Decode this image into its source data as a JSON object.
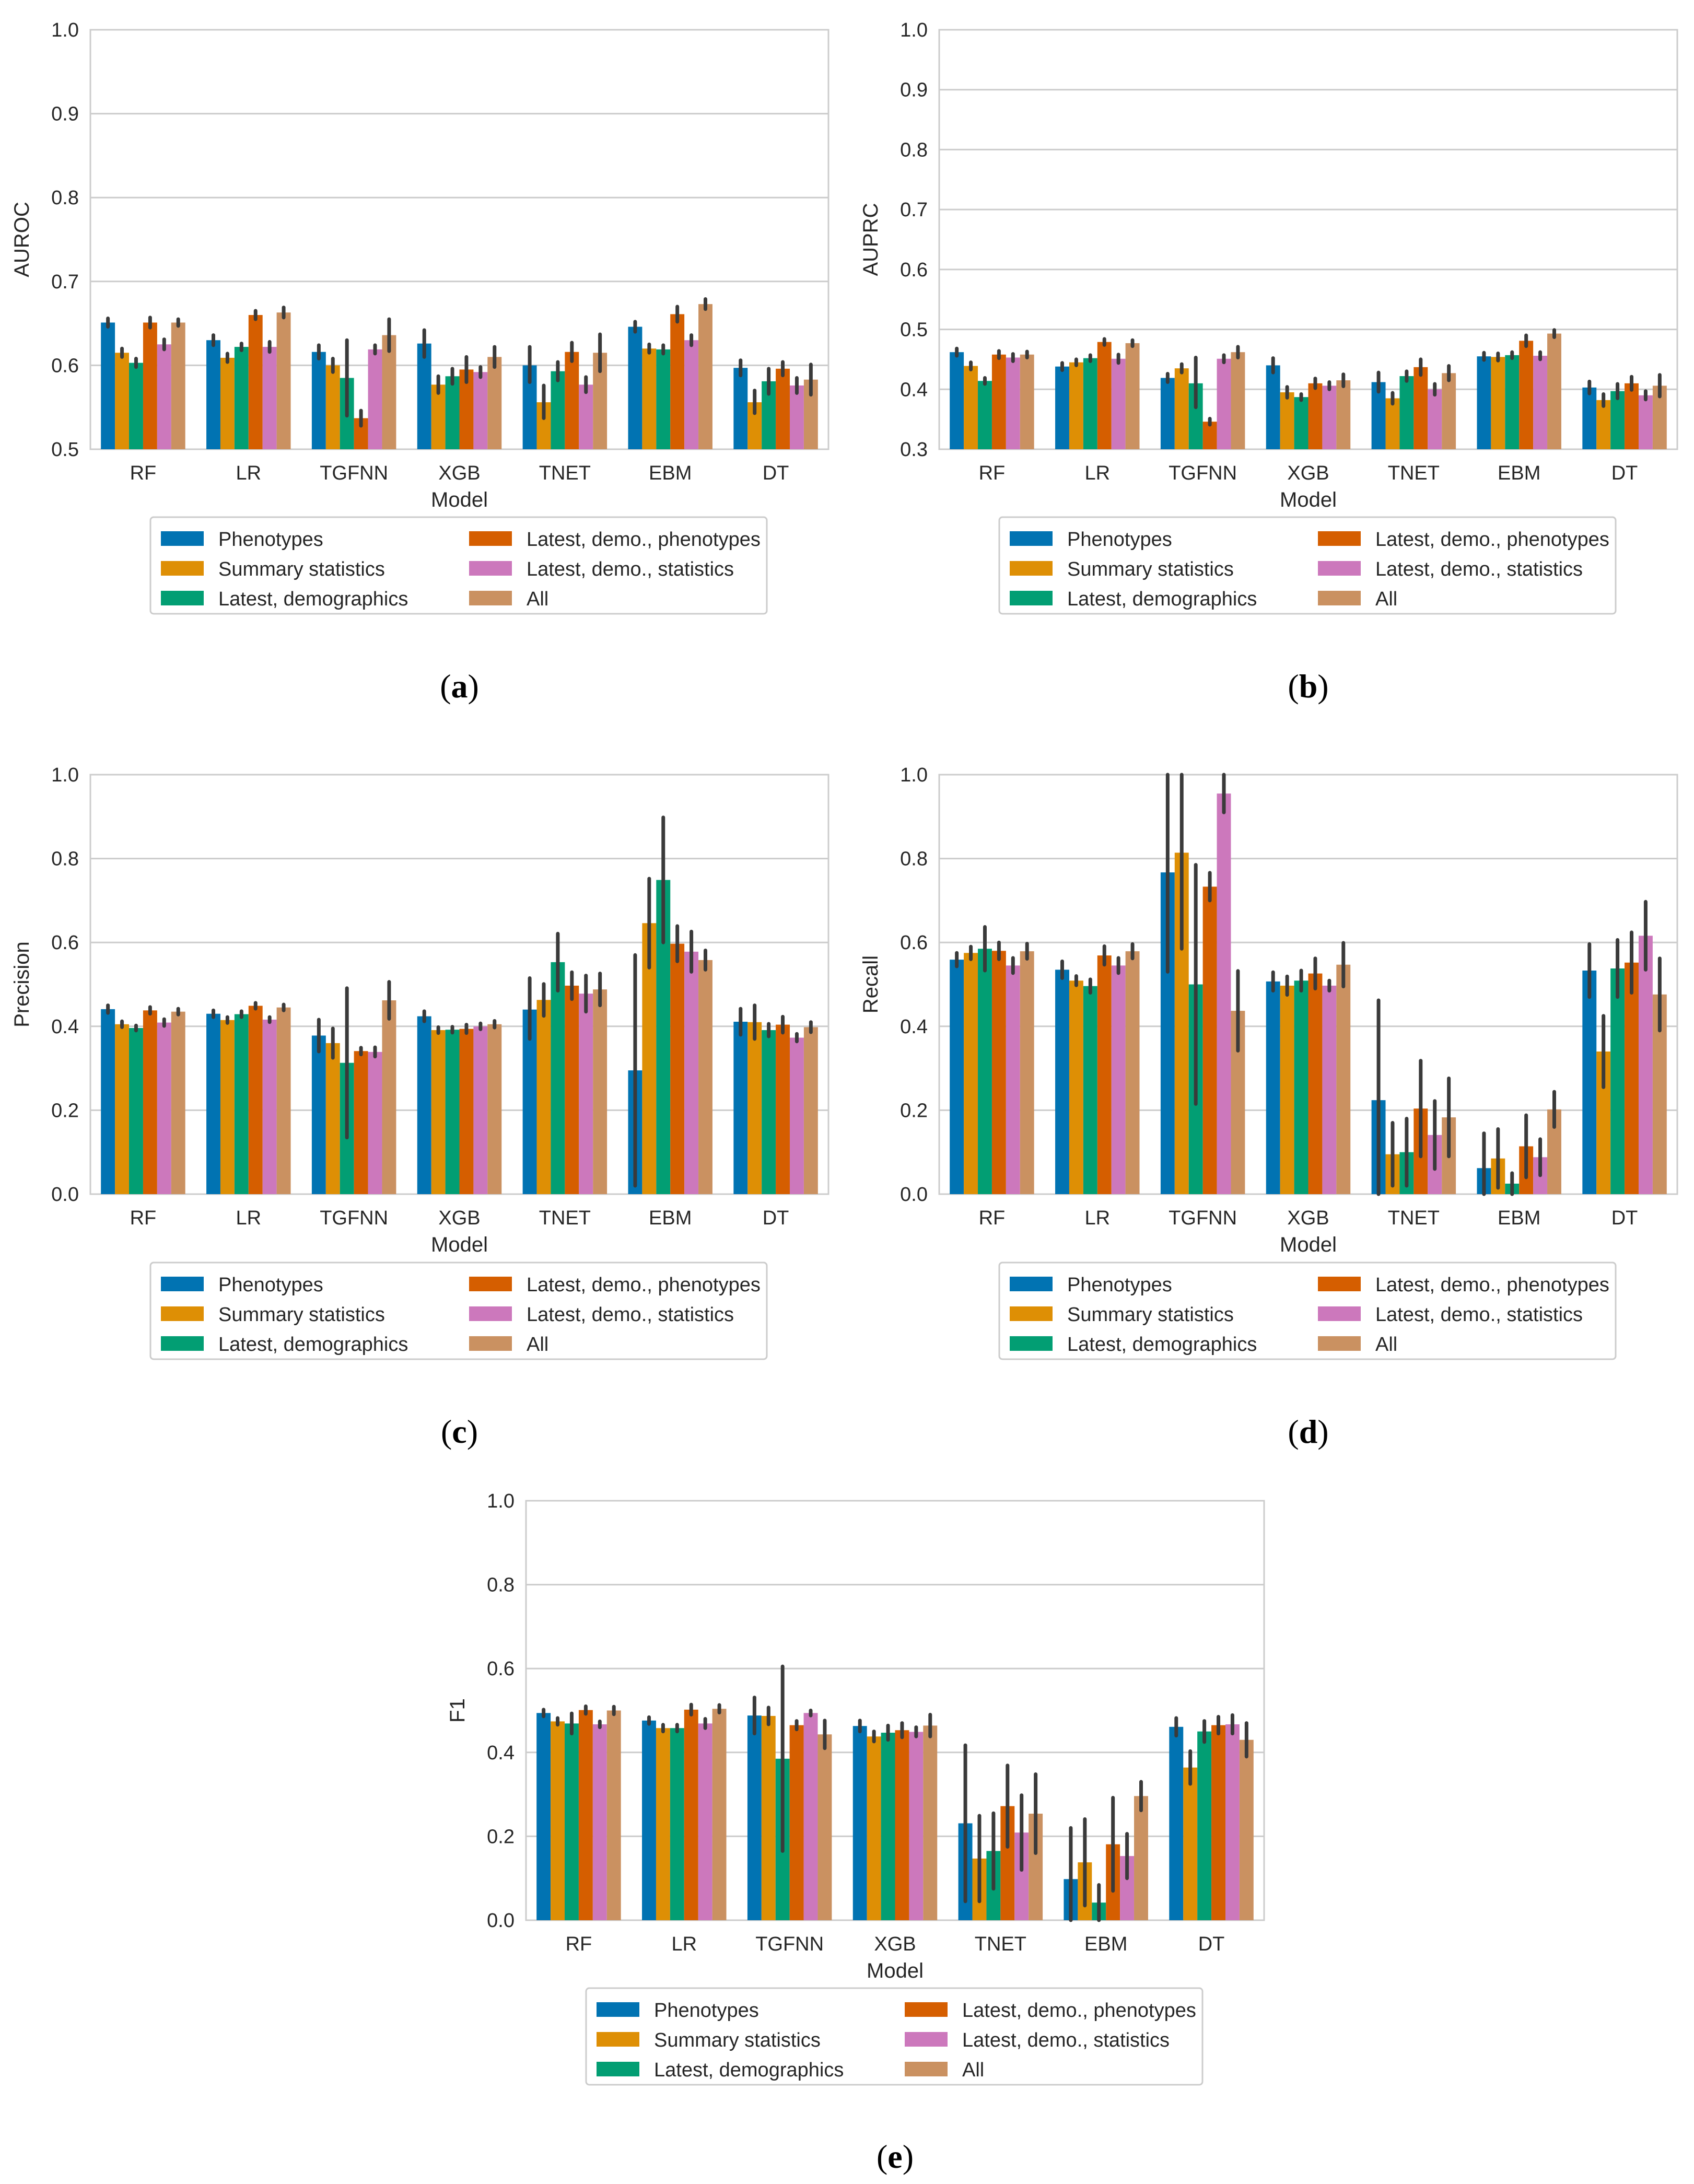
{
  "legend_labels": [
    "Phenotypes",
    "Summary statistics",
    "Latest, demographics",
    "Latest, demo., phenotypes",
    "Latest, demo., statistics",
    "All"
  ],
  "series_colors": [
    "#0173b2",
    "#de8f05",
    "#029e73",
    "#d55e00",
    "#cc78bc",
    "#ca9161"
  ],
  "error_bar_color": "#3a3a3a",
  "gridline_color": "#cccccc",
  "chart_data": [
    {
      "type": "bar",
      "caption": {
        "open": "(",
        "letter": "a",
        "close": ")"
      },
      "xlabel": "Model",
      "ylabel": "AUROC",
      "ylim": [
        0.5,
        1.0
      ],
      "yticks": [
        "0.5",
        "0.6",
        "0.7",
        "0.8",
        "0.9",
        "1.0"
      ],
      "categories": [
        "RF",
        "LR",
        "TGFNN",
        "XGB",
        "TNET",
        "EBM",
        "DT"
      ],
      "series": [
        {
          "name": "Phenotypes",
          "values": [
            0.651,
            0.63,
            0.616,
            0.626,
            0.6,
            0.646,
            0.597
          ],
          "err_low": [
            0.646,
            0.624,
            0.608,
            0.61,
            0.58,
            0.64,
            0.588
          ],
          "err_high": [
            0.656,
            0.636,
            0.624,
            0.642,
            0.622,
            0.652,
            0.606
          ]
        },
        {
          "name": "Summary statistics",
          "values": [
            0.615,
            0.609,
            0.6,
            0.577,
            0.556,
            0.62,
            0.556
          ],
          "err_low": [
            0.61,
            0.604,
            0.592,
            0.567,
            0.537,
            0.615,
            0.543
          ],
          "err_high": [
            0.62,
            0.614,
            0.608,
            0.587,
            0.576,
            0.625,
            0.57
          ]
        },
        {
          "name": "Latest, demographics",
          "values": [
            0.603,
            0.622,
            0.585,
            0.587,
            0.593,
            0.619,
            0.581
          ],
          "err_low": [
            0.598,
            0.618,
            0.54,
            0.578,
            0.582,
            0.614,
            0.566
          ],
          "err_high": [
            0.608,
            0.626,
            0.63,
            0.596,
            0.604,
            0.624,
            0.596
          ]
        },
        {
          "name": "Latest, demo., phenotypes",
          "values": [
            0.651,
            0.66,
            0.537,
            0.595,
            0.616,
            0.661,
            0.596
          ],
          "err_low": [
            0.645,
            0.655,
            0.528,
            0.58,
            0.605,
            0.652,
            0.588
          ],
          "err_high": [
            0.657,
            0.665,
            0.546,
            0.61,
            0.627,
            0.67,
            0.604
          ]
        },
        {
          "name": "Latest, demo., statistics",
          "values": [
            0.625,
            0.622,
            0.619,
            0.592,
            0.577,
            0.63,
            0.576
          ],
          "err_low": [
            0.619,
            0.616,
            0.614,
            0.586,
            0.568,
            0.624,
            0.567
          ],
          "err_high": [
            0.631,
            0.628,
            0.624,
            0.598,
            0.586,
            0.636,
            0.585
          ]
        },
        {
          "name": "All",
          "values": [
            0.651,
            0.663,
            0.636,
            0.61,
            0.615,
            0.673,
            0.583
          ],
          "err_low": [
            0.647,
            0.657,
            0.617,
            0.598,
            0.593,
            0.667,
            0.565
          ],
          "err_high": [
            0.655,
            0.669,
            0.655,
            0.622,
            0.637,
            0.679,
            0.601
          ]
        }
      ]
    },
    {
      "type": "bar",
      "caption": {
        "open": "(",
        "letter": "b",
        "close": ")"
      },
      "xlabel": "Model",
      "ylabel": "AUPRC",
      "ylim": [
        0.3,
        1.0
      ],
      "yticks": [
        "0.3",
        "0.4",
        "0.5",
        "0.6",
        "0.7",
        "0.8",
        "0.9",
        "1.0"
      ],
      "categories": [
        "RF",
        "LR",
        "TGFNN",
        "XGB",
        "TNET",
        "EBM",
        "DT"
      ],
      "series": [
        {
          "name": "Phenotypes",
          "values": [
            0.462,
            0.438,
            0.419,
            0.44,
            0.412,
            0.455,
            0.403
          ],
          "err_low": [
            0.456,
            0.432,
            0.412,
            0.428,
            0.396,
            0.449,
            0.393
          ],
          "err_high": [
            0.468,
            0.444,
            0.426,
            0.452,
            0.428,
            0.461,
            0.413
          ]
        },
        {
          "name": "Summary statistics",
          "values": [
            0.439,
            0.445,
            0.435,
            0.395,
            0.385,
            0.454,
            0.382
          ],
          "err_low": [
            0.433,
            0.44,
            0.428,
            0.386,
            0.376,
            0.448,
            0.372
          ],
          "err_high": [
            0.445,
            0.45,
            0.442,
            0.404,
            0.394,
            0.46,
            0.392
          ]
        },
        {
          "name": "Latest, demographics",
          "values": [
            0.414,
            0.452,
            0.41,
            0.387,
            0.422,
            0.457,
            0.397
          ],
          "err_low": [
            0.409,
            0.447,
            0.37,
            0.382,
            0.414,
            0.452,
            0.385
          ],
          "err_high": [
            0.419,
            0.457,
            0.453,
            0.392,
            0.43,
            0.462,
            0.409
          ]
        },
        {
          "name": "Latest, demo., phenotypes",
          "values": [
            0.458,
            0.479,
            0.346,
            0.41,
            0.437,
            0.481,
            0.41
          ],
          "err_low": [
            0.452,
            0.474,
            0.341,
            0.402,
            0.424,
            0.472,
            0.399
          ],
          "err_high": [
            0.464,
            0.484,
            0.351,
            0.418,
            0.45,
            0.49,
            0.421
          ]
        },
        {
          "name": "Latest, demo., statistics",
          "values": [
            0.453,
            0.451,
            0.451,
            0.406,
            0.4,
            0.456,
            0.39
          ],
          "err_low": [
            0.447,
            0.444,
            0.445,
            0.4,
            0.391,
            0.45,
            0.383
          ],
          "err_high": [
            0.459,
            0.458,
            0.457,
            0.412,
            0.409,
            0.462,
            0.397
          ]
        },
        {
          "name": "All",
          "values": [
            0.458,
            0.477,
            0.462,
            0.415,
            0.427,
            0.493,
            0.406
          ],
          "err_low": [
            0.453,
            0.472,
            0.453,
            0.405,
            0.415,
            0.487,
            0.388
          ],
          "err_high": [
            0.463,
            0.482,
            0.471,
            0.425,
            0.439,
            0.499,
            0.424
          ]
        }
      ]
    },
    {
      "type": "bar",
      "caption": {
        "open": "(",
        "letter": "c",
        "close": ")"
      },
      "xlabel": "Model",
      "ylabel": "Precision",
      "ylim": [
        0.0,
        1.0
      ],
      "yticks": [
        "0.0",
        "0.2",
        "0.4",
        "0.6",
        "0.8",
        "1.0"
      ],
      "categories": [
        "RF",
        "LR",
        "TGFNN",
        "XGB",
        "TNET",
        "EBM",
        "DT"
      ],
      "series": [
        {
          "name": "Phenotypes",
          "values": [
            0.441,
            0.43,
            0.378,
            0.424,
            0.44,
            0.295,
            0.411
          ],
          "err_low": [
            0.432,
            0.422,
            0.34,
            0.412,
            0.37,
            0.02,
            0.38
          ],
          "err_high": [
            0.45,
            0.438,
            0.416,
            0.436,
            0.515,
            0.57,
            0.442
          ]
        },
        {
          "name": "Summary statistics",
          "values": [
            0.405,
            0.415,
            0.36,
            0.391,
            0.463,
            0.646,
            0.41
          ],
          "err_low": [
            0.398,
            0.408,
            0.325,
            0.384,
            0.425,
            0.54,
            0.37
          ],
          "err_high": [
            0.412,
            0.422,
            0.395,
            0.398,
            0.501,
            0.752,
            0.45
          ]
        },
        {
          "name": "Latest, demographics",
          "values": [
            0.396,
            0.429,
            0.313,
            0.392,
            0.553,
            0.749,
            0.391
          ],
          "err_low": [
            0.39,
            0.422,
            0.135,
            0.385,
            0.485,
            0.6,
            0.376
          ],
          "err_high": [
            0.402,
            0.436,
            0.491,
            0.399,
            0.621,
            0.898,
            0.406
          ]
        },
        {
          "name": "Latest, demo., phenotypes",
          "values": [
            0.438,
            0.449,
            0.341,
            0.394,
            0.497,
            0.597,
            0.404
          ],
          "err_low": [
            0.43,
            0.442,
            0.333,
            0.384,
            0.465,
            0.555,
            0.385
          ],
          "err_high": [
            0.446,
            0.456,
            0.349,
            0.404,
            0.529,
            0.639,
            0.423
          ]
        },
        {
          "name": "Latest, demo., statistics",
          "values": [
            0.409,
            0.416,
            0.339,
            0.4,
            0.478,
            0.578,
            0.373
          ],
          "err_low": [
            0.401,
            0.41,
            0.328,
            0.393,
            0.435,
            0.53,
            0.364
          ],
          "err_high": [
            0.417,
            0.422,
            0.35,
            0.407,
            0.521,
            0.626,
            0.382
          ]
        },
        {
          "name": "All",
          "values": [
            0.435,
            0.445,
            0.462,
            0.405,
            0.488,
            0.558,
            0.398
          ],
          "err_low": [
            0.428,
            0.438,
            0.418,
            0.397,
            0.45,
            0.535,
            0.386
          ],
          "err_high": [
            0.442,
            0.452,
            0.506,
            0.413,
            0.526,
            0.581,
            0.41
          ]
        }
      ]
    },
    {
      "type": "bar",
      "caption": {
        "open": "(",
        "letter": "d",
        "close": ")"
      },
      "xlabel": "Model",
      "ylabel": "Recall",
      "ylim": [
        0.0,
        1.0
      ],
      "yticks": [
        "0.0",
        "0.2",
        "0.4",
        "0.6",
        "0.8",
        "1.0"
      ],
      "categories": [
        "RF",
        "LR",
        "TGFNN",
        "XGB",
        "TNET",
        "EBM",
        "DT"
      ],
      "series": [
        {
          "name": "Phenotypes",
          "values": [
            0.559,
            0.535,
            0.767,
            0.507,
            0.224,
            0.062,
            0.533
          ],
          "err_low": [
            0.543,
            0.515,
            0.53,
            0.485,
            0.0,
            0.0,
            0.47
          ],
          "err_high": [
            0.575,
            0.555,
            1.0,
            0.529,
            0.462,
            0.145,
            0.596
          ]
        },
        {
          "name": "Summary statistics",
          "values": [
            0.575,
            0.509,
            0.814,
            0.497,
            0.095,
            0.085,
            0.34
          ],
          "err_low": [
            0.56,
            0.498,
            0.585,
            0.475,
            0.02,
            0.015,
            0.255
          ],
          "err_high": [
            0.59,
            0.52,
            1.0,
            0.519,
            0.17,
            0.155,
            0.425
          ]
        },
        {
          "name": "Latest, demographics",
          "values": [
            0.585,
            0.496,
            0.5,
            0.509,
            0.1,
            0.025,
            0.538
          ],
          "err_low": [
            0.533,
            0.48,
            0.215,
            0.485,
            0.02,
            0.0,
            0.47
          ],
          "err_high": [
            0.637,
            0.512,
            0.785,
            0.533,
            0.18,
            0.05,
            0.606
          ]
        },
        {
          "name": "Latest, demo., phenotypes",
          "values": [
            0.58,
            0.569,
            0.733,
            0.526,
            0.204,
            0.114,
            0.552
          ],
          "err_low": [
            0.56,
            0.547,
            0.7,
            0.49,
            0.09,
            0.04,
            0.48
          ],
          "err_high": [
            0.6,
            0.591,
            0.766,
            0.562,
            0.318,
            0.188,
            0.624
          ]
        },
        {
          "name": "Latest, demo., statistics",
          "values": [
            0.545,
            0.545,
            0.955,
            0.497,
            0.141,
            0.088,
            0.616
          ],
          "err_low": [
            0.527,
            0.527,
            0.91,
            0.485,
            0.06,
            0.045,
            0.535
          ],
          "err_high": [
            0.563,
            0.563,
            1.0,
            0.509,
            0.222,
            0.131,
            0.697
          ]
        },
        {
          "name": "All",
          "values": [
            0.579,
            0.579,
            0.437,
            0.547,
            0.183,
            0.202,
            0.476
          ],
          "err_low": [
            0.561,
            0.562,
            0.342,
            0.495,
            0.09,
            0.16,
            0.39
          ],
          "err_high": [
            0.597,
            0.596,
            0.532,
            0.599,
            0.276,
            0.244,
            0.562
          ]
        }
      ]
    },
    {
      "type": "bar",
      "caption": {
        "open": "(",
        "letter": "e",
        "close": ")"
      },
      "xlabel": "Model",
      "ylabel": "F1",
      "ylim": [
        0.0,
        1.0
      ],
      "yticks": [
        "0.0",
        "0.2",
        "0.4",
        "0.6",
        "0.8",
        "1.0"
      ],
      "categories": [
        "RF",
        "LR",
        "TGFNN",
        "XGB",
        "TNET",
        "EBM",
        "DT"
      ],
      "series": [
        {
          "name": "Phenotypes",
          "values": [
            0.494,
            0.476,
            0.488,
            0.463,
            0.231,
            0.098,
            0.461
          ],
          "err_low": [
            0.486,
            0.468,
            0.445,
            0.45,
            0.045,
            0.0,
            0.44
          ],
          "err_high": [
            0.502,
            0.484,
            0.531,
            0.476,
            0.417,
            0.22,
            0.482
          ]
        },
        {
          "name": "Summary statistics",
          "values": [
            0.474,
            0.458,
            0.487,
            0.438,
            0.147,
            0.138,
            0.364
          ],
          "err_low": [
            0.466,
            0.45,
            0.467,
            0.426,
            0.045,
            0.035,
            0.325
          ],
          "err_high": [
            0.482,
            0.466,
            0.507,
            0.45,
            0.249,
            0.241,
            0.403
          ]
        },
        {
          "name": "Latest, demographics",
          "values": [
            0.469,
            0.458,
            0.385,
            0.447,
            0.165,
            0.042,
            0.45
          ],
          "err_low": [
            0.445,
            0.45,
            0.165,
            0.43,
            0.075,
            0.0,
            0.425
          ],
          "err_high": [
            0.493,
            0.466,
            0.605,
            0.464,
            0.255,
            0.084,
            0.475
          ]
        },
        {
          "name": "Latest, demo., phenotypes",
          "values": [
            0.501,
            0.502,
            0.465,
            0.453,
            0.272,
            0.181,
            0.465
          ],
          "err_low": [
            0.492,
            0.49,
            0.455,
            0.436,
            0.175,
            0.07,
            0.445
          ],
          "err_high": [
            0.51,
            0.514,
            0.475,
            0.47,
            0.369,
            0.292,
            0.485
          ]
        },
        {
          "name": "Latest, demo., statistics",
          "values": [
            0.467,
            0.469,
            0.494,
            0.449,
            0.209,
            0.153,
            0.467
          ],
          "err_low": [
            0.46,
            0.458,
            0.488,
            0.438,
            0.12,
            0.1,
            0.445
          ],
          "err_high": [
            0.474,
            0.48,
            0.5,
            0.46,
            0.298,
            0.206,
            0.489
          ]
        },
        {
          "name": "All",
          "values": [
            0.5,
            0.504,
            0.443,
            0.464,
            0.254,
            0.296,
            0.43
          ],
          "err_low": [
            0.491,
            0.495,
            0.41,
            0.438,
            0.16,
            0.262,
            0.39
          ],
          "err_high": [
            0.509,
            0.513,
            0.476,
            0.49,
            0.348,
            0.33,
            0.47
          ]
        }
      ]
    }
  ]
}
